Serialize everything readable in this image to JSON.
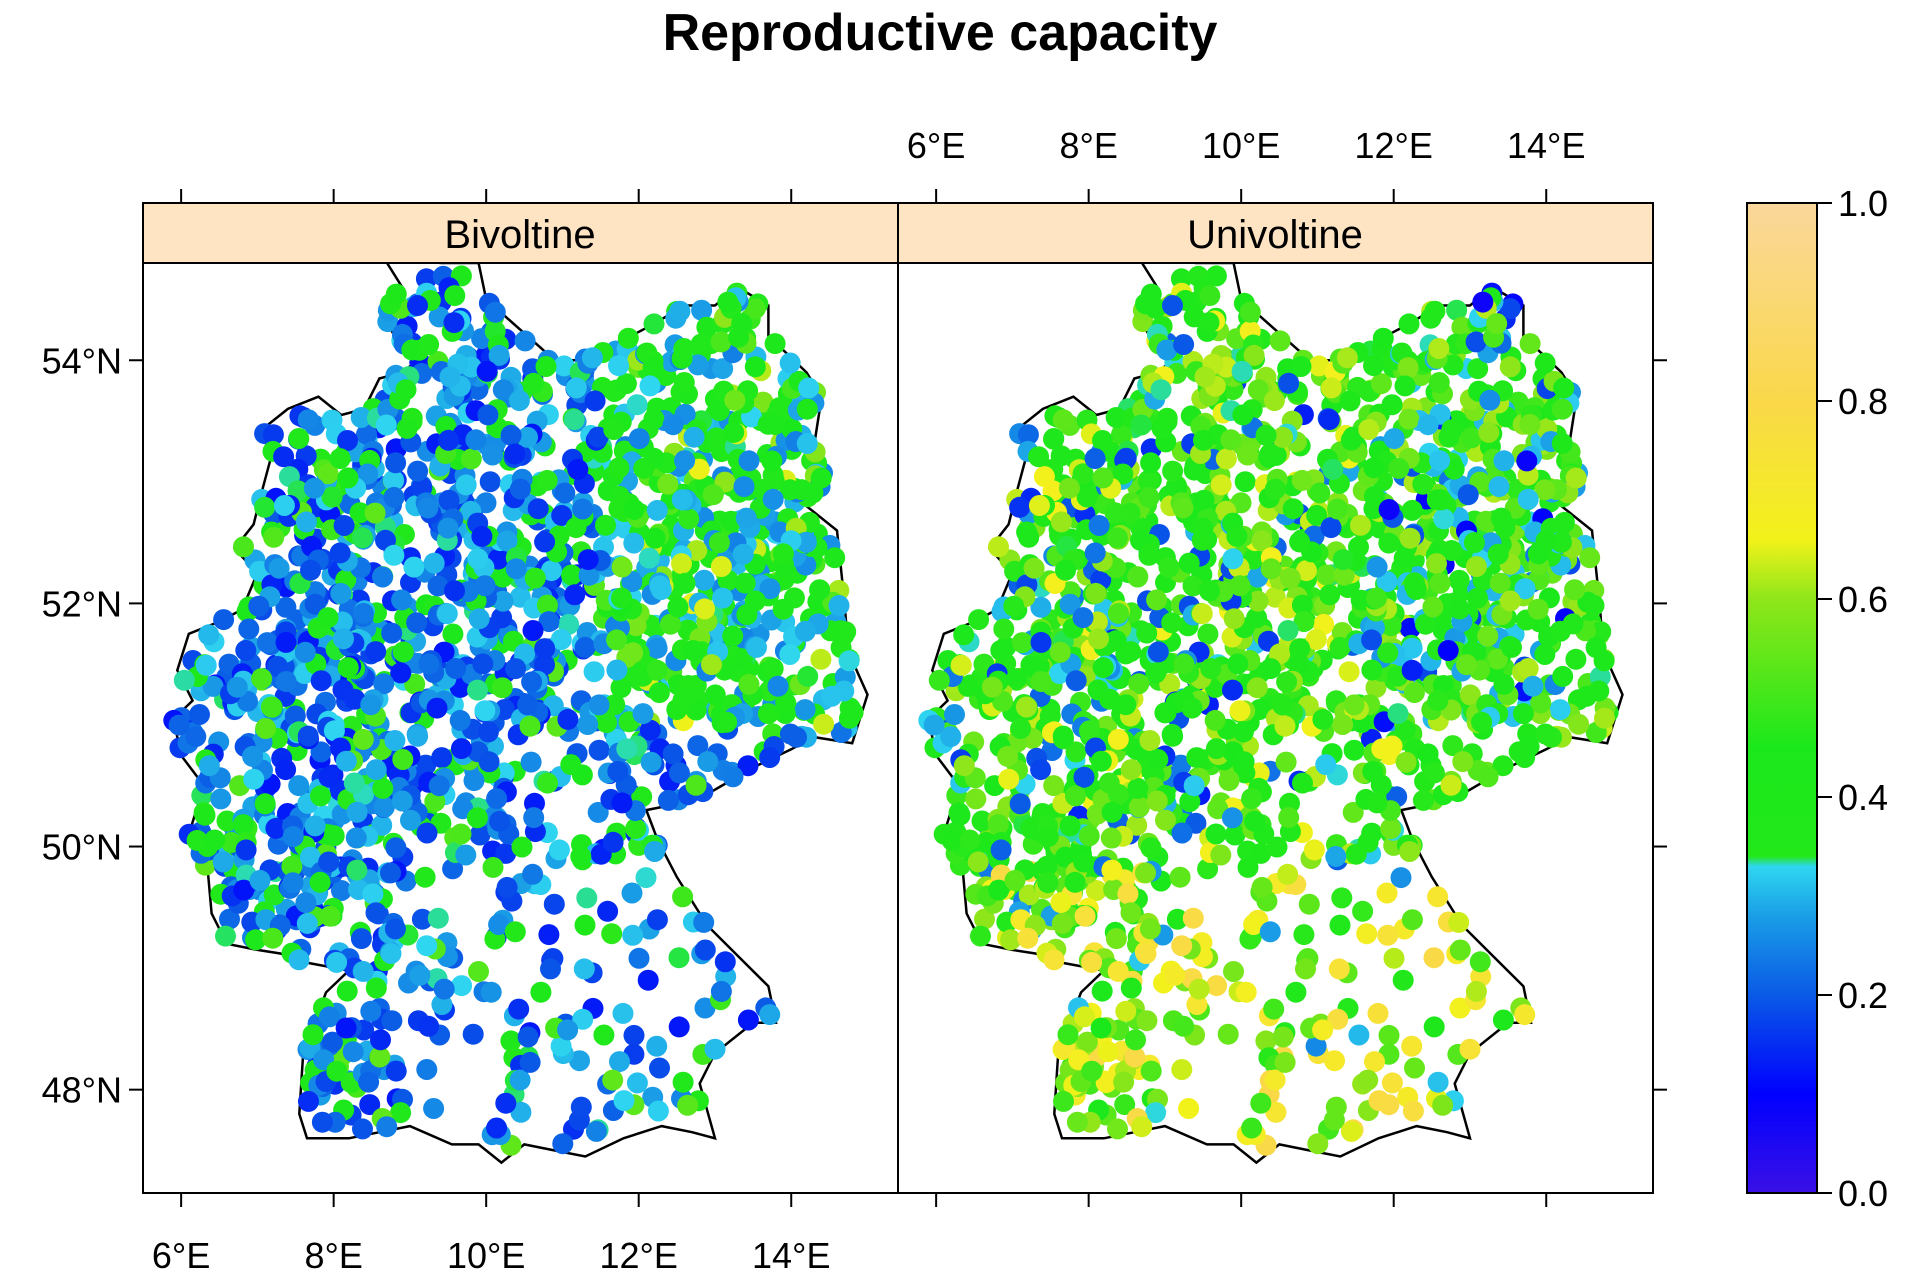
{
  "title": "Reproductive capacity",
  "panels": [
    {
      "strip": "Bivoltine"
    },
    {
      "strip": "Univoltine"
    }
  ],
  "axes": {
    "x_ticks": [
      {
        "value": 6,
        "label": "6°E"
      },
      {
        "value": 8,
        "label": "8°E"
      },
      {
        "value": 10,
        "label": "10°E"
      },
      {
        "value": 12,
        "label": "12°E"
      },
      {
        "value": 14,
        "label": "14°E"
      }
    ],
    "y_ticks": [
      {
        "value": 48,
        "label": "48°N"
      },
      {
        "value": 50,
        "label": "50°N"
      },
      {
        "value": 52,
        "label": "52°N"
      },
      {
        "value": 54,
        "label": "54°N"
      }
    ],
    "xlim": [
      5.5,
      15.4
    ],
    "ylim": [
      47.15,
      54.8
    ]
  },
  "colorbar": {
    "range": [
      0,
      1
    ],
    "ticks": [
      {
        "value": 0.0,
        "label": "0.0"
      },
      {
        "value": 0.2,
        "label": "0.2"
      },
      {
        "value": 0.4,
        "label": "0.4"
      },
      {
        "value": 0.6,
        "label": "0.6"
      },
      {
        "value": 0.8,
        "label": "0.8"
      },
      {
        "value": 1.0,
        "label": "1.0"
      }
    ],
    "stops": [
      {
        "v": 0.0,
        "color": "#3a10e6"
      },
      {
        "v": 0.1,
        "color": "#0000ff"
      },
      {
        "v": 0.2,
        "color": "#0a5ae6"
      },
      {
        "v": 0.28,
        "color": "#1a9ee6"
      },
      {
        "v": 0.33,
        "color": "#2fd6f0"
      },
      {
        "v": 0.34,
        "color": "#22e81a"
      },
      {
        "v": 0.45,
        "color": "#1be81b"
      },
      {
        "v": 0.6,
        "color": "#8fe61a"
      },
      {
        "v": 0.66,
        "color": "#f2f21a"
      },
      {
        "v": 0.8,
        "color": "#fad84a"
      },
      {
        "v": 1.0,
        "color": "#fad79b"
      }
    ]
  },
  "colors": {
    "strip_bg": "#ffe4c4",
    "border": "#000000",
    "boundary": "#000000"
  }
}
